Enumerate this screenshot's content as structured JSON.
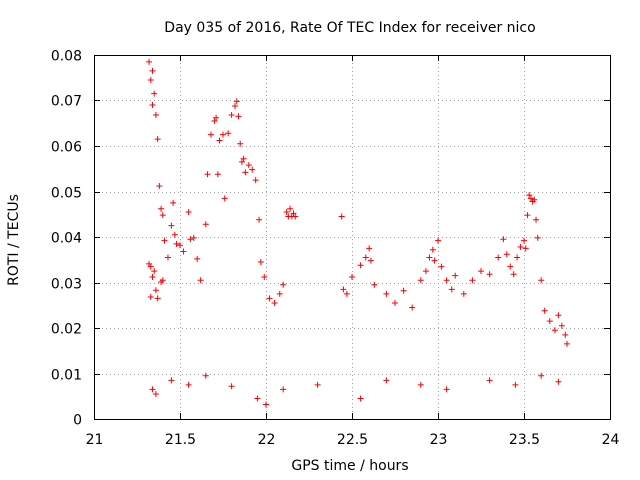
{
  "chart_data": {
    "type": "scatter",
    "title": "Day 035 of 2016, Rate Of TEC Index for receiver nico",
    "xlabel": "GPS time / hours",
    "ylabel": "ROTI / TECUs",
    "xlim": [
      21,
      24
    ],
    "ylim": [
      0,
      0.08
    ],
    "x_ticks": [
      21,
      21.5,
      22,
      22.5,
      23,
      23.5,
      24
    ],
    "x_tick_labels": [
      "21",
      "21.5",
      "22",
      "22.5",
      "23",
      "23.5",
      "24"
    ],
    "y_ticks": [
      0,
      0.01,
      0.02,
      0.03,
      0.04,
      0.05,
      0.06,
      0.07,
      0.08
    ],
    "y_tick_labels": [
      "0",
      "0.01",
      "0.02",
      "0.03",
      "0.04",
      "0.05",
      "0.06",
      "0.07",
      "0.08"
    ],
    "grid": true,
    "marker": "+",
    "color": "#ff0000",
    "series": [
      {
        "name": "ROTI",
        "points": [
          [
            21.32,
            0.0785
          ],
          [
            21.33,
            0.0745
          ],
          [
            21.34,
            0.069
          ],
          [
            21.35,
            0.0715
          ],
          [
            21.34,
            0.0765
          ],
          [
            21.36,
            0.0668
          ],
          [
            21.37,
            0.0615
          ],
          [
            21.38,
            0.0512
          ],
          [
            21.39,
            0.0462
          ],
          [
            21.4,
            0.0448
          ],
          [
            21.41,
            0.0392
          ],
          [
            21.32,
            0.0341
          ],
          [
            21.33,
            0.0335
          ],
          [
            21.34,
            0.0312
          ],
          [
            21.35,
            0.0325
          ],
          [
            21.33,
            0.0268
          ],
          [
            21.36,
            0.0283
          ],
          [
            21.37,
            0.0265
          ],
          [
            21.39,
            0.0301
          ],
          [
            21.4,
            0.0305
          ],
          [
            21.43,
            0.0355
          ],
          [
            21.45,
            0.0425
          ],
          [
            21.46,
            0.0475
          ],
          [
            21.47,
            0.0405
          ],
          [
            21.48,
            0.0385
          ],
          [
            21.5,
            0.0382
          ],
          [
            21.52,
            0.0368
          ],
          [
            21.55,
            0.0455
          ],
          [
            21.56,
            0.0395
          ],
          [
            21.58,
            0.0398
          ],
          [
            21.6,
            0.0352
          ],
          [
            21.62,
            0.0305
          ],
          [
            21.65,
            0.0428
          ],
          [
            21.66,
            0.0538
          ],
          [
            21.68,
            0.0625
          ],
          [
            21.7,
            0.0655
          ],
          [
            21.71,
            0.0662
          ],
          [
            21.72,
            0.0538
          ],
          [
            21.73,
            0.0612
          ],
          [
            21.75,
            0.0625
          ],
          [
            21.76,
            0.0485
          ],
          [
            21.78,
            0.0628
          ],
          [
            21.8,
            0.0668
          ],
          [
            21.82,
            0.0688
          ],
          [
            21.83,
            0.0698
          ],
          [
            21.84,
            0.0665
          ],
          [
            21.85,
            0.0605
          ],
          [
            21.86,
            0.0565
          ],
          [
            21.87,
            0.0572
          ],
          [
            21.88,
            0.0542
          ],
          [
            21.9,
            0.0558
          ],
          [
            21.92,
            0.0548
          ],
          [
            21.94,
            0.0525
          ],
          [
            21.96,
            0.0438
          ],
          [
            21.97,
            0.0345
          ],
          [
            21.99,
            0.0312
          ],
          [
            22.02,
            0.0265
          ],
          [
            22.05,
            0.0255
          ],
          [
            22.08,
            0.0275
          ],
          [
            22.1,
            0.0295
          ],
          [
            22.12,
            0.0455
          ],
          [
            22.13,
            0.0445
          ],
          [
            22.14,
            0.0462
          ],
          [
            22.15,
            0.0445
          ],
          [
            22.16,
            0.0452
          ],
          [
            22.17,
            0.0445
          ],
          [
            22.44,
            0.0445
          ],
          [
            22.45,
            0.0285
          ],
          [
            22.47,
            0.0275
          ],
          [
            22.5,
            0.0312
          ],
          [
            22.55,
            0.0338
          ],
          [
            22.58,
            0.0355
          ],
          [
            22.6,
            0.0375
          ],
          [
            22.61,
            0.0348
          ],
          [
            22.63,
            0.0295
          ],
          [
            22.7,
            0.0275
          ],
          [
            22.75,
            0.0255
          ],
          [
            22.8,
            0.0282
          ],
          [
            22.85,
            0.0245
          ],
          [
            22.9,
            0.0305
          ],
          [
            22.93,
            0.0325
          ],
          [
            22.95,
            0.0355
          ],
          [
            22.97,
            0.0372
          ],
          [
            22.98,
            0.0348
          ],
          [
            23.0,
            0.0392
          ],
          [
            23.02,
            0.0335
          ],
          [
            23.05,
            0.0305
          ],
          [
            23.08,
            0.0285
          ],
          [
            23.1,
            0.0315
          ],
          [
            23.15,
            0.0275
          ],
          [
            23.2,
            0.0305
          ],
          [
            23.25,
            0.0325
          ],
          [
            23.3,
            0.0318
          ],
          [
            23.35,
            0.0355
          ],
          [
            23.38,
            0.0395
          ],
          [
            23.4,
            0.0362
          ],
          [
            23.42,
            0.0335
          ],
          [
            23.44,
            0.0318
          ],
          [
            23.46,
            0.0355
          ],
          [
            23.48,
            0.0378
          ],
          [
            23.5,
            0.0392
          ],
          [
            23.51,
            0.0375
          ],
          [
            23.52,
            0.0448
          ],
          [
            23.53,
            0.0492
          ],
          [
            23.54,
            0.0485
          ],
          [
            23.55,
            0.0478
          ],
          [
            23.56,
            0.0482
          ],
          [
            23.57,
            0.0438
          ],
          [
            23.58,
            0.0398
          ],
          [
            23.6,
            0.0305
          ],
          [
            23.62,
            0.0238
          ],
          [
            23.65,
            0.0215
          ],
          [
            23.68,
            0.0195
          ],
          [
            23.7,
            0.0228
          ],
          [
            23.72,
            0.0205
          ],
          [
            23.74,
            0.0185
          ],
          [
            23.75,
            0.0165
          ],
          [
            21.34,
            0.0065
          ],
          [
            21.36,
            0.0055
          ],
          [
            21.45,
            0.0085
          ],
          [
            21.55,
            0.0075
          ],
          [
            21.65,
            0.0095
          ],
          [
            21.8,
            0.0072
          ],
          [
            21.95,
            0.0045
          ],
          [
            22.0,
            0.0032
          ],
          [
            22.1,
            0.0065
          ],
          [
            22.3,
            0.0075
          ],
          [
            22.55,
            0.0045
          ],
          [
            22.7,
            0.0085
          ],
          [
            22.9,
            0.0075
          ],
          [
            23.05,
            0.0065
          ],
          [
            23.3,
            0.0085
          ],
          [
            23.45,
            0.0075
          ],
          [
            23.6,
            0.0095
          ],
          [
            23.7,
            0.0082
          ]
        ]
      }
    ]
  }
}
